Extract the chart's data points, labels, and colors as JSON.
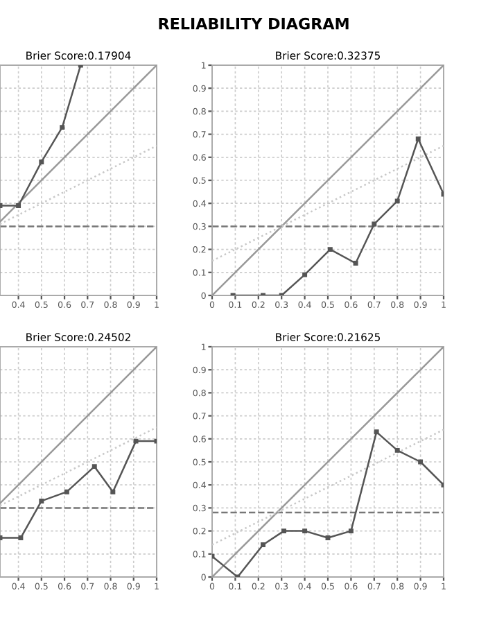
{
  "chart_data": [
    {
      "type": "line",
      "title": "Brier Score:0.17904",
      "annotations": [
        "RELIABILITY DIAGRAM"
      ],
      "xlim": [
        0.32,
        1
      ],
      "ylim": [
        0,
        1
      ],
      "xticks": [
        0.4,
        0.5,
        0.6,
        0.7,
        0.8,
        0.9,
        1
      ],
      "yticks": [
        0,
        0.1,
        0.2,
        0.3,
        0.4,
        0.5,
        0.6,
        0.7,
        0.8,
        0.9,
        1
      ],
      "tick_labels": "x",
      "grid": true,
      "series": [
        {
          "color": "#999999",
          "x": [
            0.32,
            1
          ],
          "values": [
            0.32,
            1
          ],
          "line_style": "solid",
          "marker": "none"
        },
        {
          "color": "#c8c8c8",
          "x": [
            0.32,
            1
          ],
          "values": [
            0.31,
            0.65
          ],
          "line_style": "dotted",
          "marker": "none"
        },
        {
          "color": "#555555",
          "x": [
            0.32,
            0.4,
            0.5,
            0.59,
            0.67
          ],
          "values": [
            0.39,
            0.39,
            0.58,
            0.73,
            1
          ],
          "line_style": "solid",
          "marker": "square"
        }
      ],
      "ref_lines": [
        {
          "axis": "y",
          "value": 0.3,
          "color": "#777777",
          "line_style": "dashed"
        }
      ]
    },
    {
      "type": "line",
      "title": "Brier Score:0.32375",
      "xlim": [
        0,
        1
      ],
      "ylim": [
        0,
        1
      ],
      "xticks": [
        0,
        0.1,
        0.2,
        0.3,
        0.4,
        0.5,
        0.6,
        0.7,
        0.8,
        0.9,
        1
      ],
      "yticks": [
        0,
        0.1,
        0.2,
        0.3,
        0.4,
        0.5,
        0.6,
        0.7,
        0.8,
        0.9,
        1
      ],
      "grid": true,
      "series": [
        {
          "color": "#999999",
          "x": [
            0,
            1
          ],
          "values": [
            0,
            1
          ],
          "line_style": "solid",
          "marker": "none"
        },
        {
          "color": "#c8c8c8",
          "x": [
            0,
            1
          ],
          "values": [
            0.15,
            0.65
          ],
          "line_style": "dotted",
          "marker": "none"
        },
        {
          "color": "#555555",
          "x": [
            0.09,
            0.22,
            0.3,
            0.4,
            0.51,
            0.62,
            0.7,
            0.8,
            0.89,
            1
          ],
          "values": [
            0,
            0,
            0,
            0.09,
            0.2,
            0.14,
            0.31,
            0.41,
            0.68,
            0.44
          ],
          "line_style": "solid",
          "marker": "square"
        }
      ],
      "ref_lines": [
        {
          "axis": "y",
          "value": 0.3,
          "color": "#777777",
          "line_style": "dashed"
        }
      ]
    },
    {
      "type": "line",
      "title": "Brier Score:0.24502",
      "xlim": [
        0.32,
        1
      ],
      "ylim": [
        0,
        1
      ],
      "xticks": [
        0.4,
        0.5,
        0.6,
        0.7,
        0.8,
        0.9,
        1
      ],
      "yticks": [
        0,
        0.1,
        0.2,
        0.3,
        0.4,
        0.5,
        0.6,
        0.7,
        0.8,
        0.9,
        1
      ],
      "tick_labels": "x",
      "grid": true,
      "series": [
        {
          "color": "#999999",
          "x": [
            0.32,
            1
          ],
          "values": [
            0.32,
            1
          ],
          "line_style": "solid",
          "marker": "none"
        },
        {
          "color": "#c8c8c8",
          "x": [
            0.32,
            1
          ],
          "values": [
            0.31,
            0.65
          ],
          "line_style": "dotted",
          "marker": "none"
        },
        {
          "color": "#555555",
          "x": [
            0.32,
            0.41,
            0.5,
            0.61,
            0.73,
            0.81,
            0.91,
            1
          ],
          "values": [
            0.17,
            0.17,
            0.33,
            0.37,
            0.48,
            0.37,
            0.59,
            0.59
          ],
          "line_style": "solid",
          "marker": "square"
        }
      ],
      "ref_lines": [
        {
          "axis": "y",
          "value": 0.3,
          "color": "#777777",
          "line_style": "dashed"
        }
      ]
    },
    {
      "type": "line",
      "title": "Brier Score:0.21625",
      "xlim": [
        0,
        1
      ],
      "ylim": [
        0,
        1
      ],
      "xticks": [
        0,
        0.1,
        0.2,
        0.3,
        0.4,
        0.5,
        0.6,
        0.7,
        0.8,
        0.9,
        1
      ],
      "yticks": [
        0,
        0.1,
        0.2,
        0.3,
        0.4,
        0.5,
        0.6,
        0.7,
        0.8,
        0.9,
        1
      ],
      "grid": true,
      "series": [
        {
          "color": "#999999",
          "x": [
            0,
            1
          ],
          "values": [
            0,
            1
          ],
          "line_style": "solid",
          "marker": "none"
        },
        {
          "color": "#c8c8c8",
          "x": [
            0,
            1
          ],
          "values": [
            0.14,
            0.64
          ],
          "line_style": "dotted",
          "marker": "none"
        },
        {
          "color": "#555555",
          "x": [
            0,
            0.11,
            0.22,
            0.31,
            0.4,
            0.5,
            0.6,
            0.71,
            0.8,
            0.9,
            1
          ],
          "values": [
            0.09,
            0,
            0.14,
            0.2,
            0.2,
            0.17,
            0.2,
            0.63,
            0.55,
            0.5,
            0.4
          ],
          "line_style": "solid",
          "marker": "square"
        }
      ],
      "ref_lines": [
        {
          "axis": "y",
          "value": 0.28,
          "color": "#777777",
          "line_style": "dashed"
        }
      ]
    }
  ]
}
